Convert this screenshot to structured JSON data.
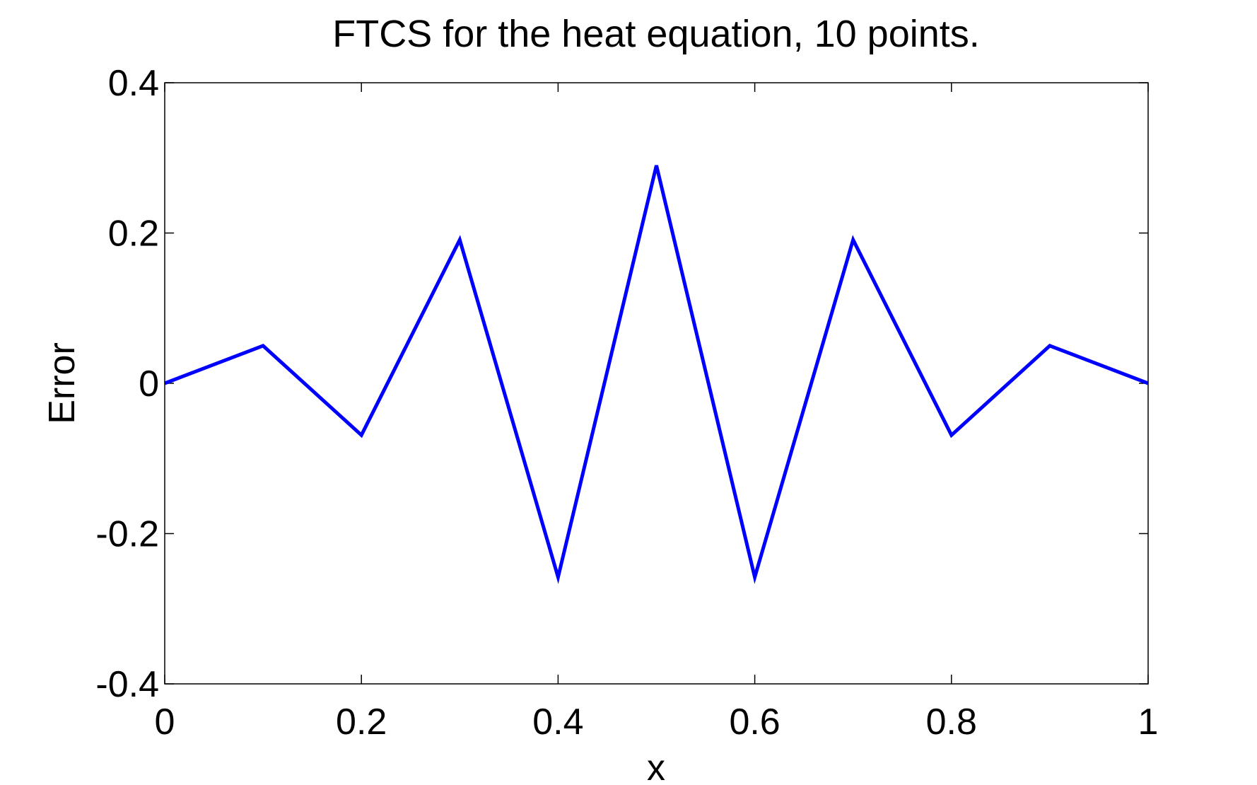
{
  "chart_data": {
    "type": "line",
    "title": "FTCS for the heat equation, 10 points.",
    "xlabel": "x",
    "ylabel": "Error",
    "xlim": [
      0,
      1
    ],
    "ylim": [
      -0.4,
      0.4
    ],
    "xticks": [
      0,
      0.2,
      0.4,
      0.6,
      0.8,
      1
    ],
    "xtick_labels": [
      "0",
      "0.2",
      "0.4",
      "0.6",
      "0.8",
      "1"
    ],
    "yticks": [
      -0.4,
      -0.2,
      0,
      0.2,
      0.4
    ],
    "ytick_labels": [
      "-0.4",
      "-0.2",
      "0",
      "0.2",
      "0.4"
    ],
    "grid": false,
    "series": [
      {
        "color": "#0000ff",
        "x": [
          0,
          0.1,
          0.2,
          0.3,
          0.4,
          0.5,
          0.6,
          0.7,
          0.8,
          0.9,
          1.0
        ],
        "y": [
          0,
          0.05,
          -0.069,
          0.191,
          -0.258,
          0.29,
          -0.258,
          0.191,
          -0.069,
          0.05,
          0
        ]
      }
    ]
  }
}
